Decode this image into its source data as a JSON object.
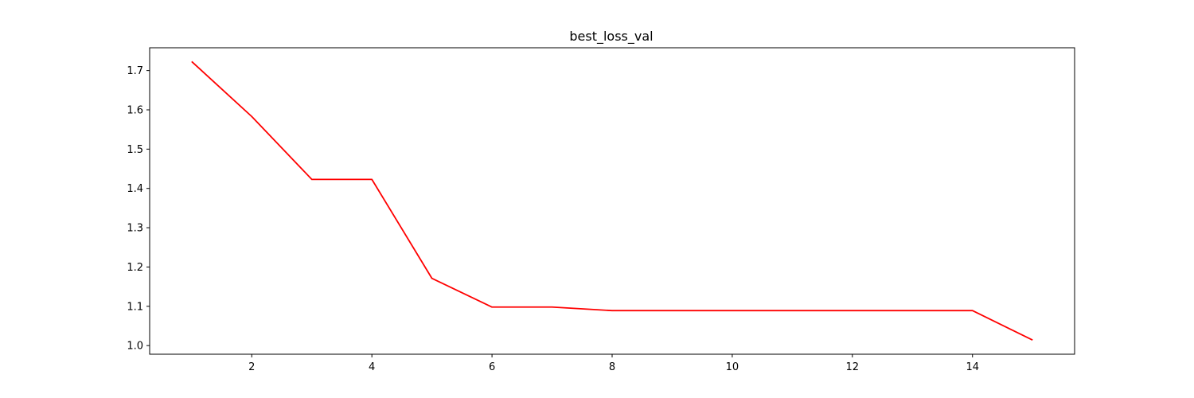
{
  "chart_data": {
    "type": "line",
    "title": "best_loss_val",
    "xlabel": "",
    "ylabel": "",
    "xlim": [
      0.3,
      15.7
    ],
    "ylim": [
      0.978,
      1.758
    ],
    "x_ticks": [
      2,
      4,
      6,
      8,
      10,
      12,
      14
    ],
    "y_ticks": [
      1.0,
      1.1,
      1.2,
      1.3,
      1.4,
      1.5,
      1.6,
      1.7
    ],
    "grid": false,
    "legend": "none",
    "series": [
      {
        "color": "#ff0000",
        "x": [
          1,
          2,
          3,
          4,
          5,
          6,
          7,
          8,
          9,
          10,
          11,
          12,
          13,
          14,
          15
        ],
        "y": [
          1.723,
          1.583,
          1.423,
          1.423,
          1.171,
          1.098,
          1.098,
          1.089,
          1.089,
          1.089,
          1.089,
          1.089,
          1.089,
          1.089,
          1.014
        ]
      }
    ]
  }
}
